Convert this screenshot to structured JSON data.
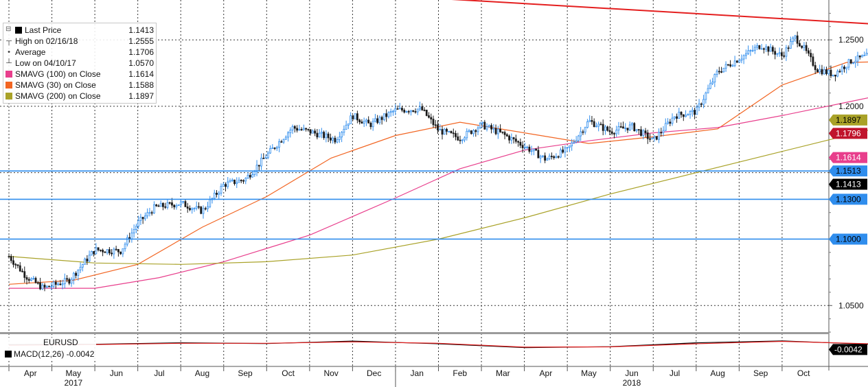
{
  "chart_data": [
    {
      "type": "candlestick",
      "title": "",
      "ylim": [
        1.03,
        1.28
      ],
      "y_ticks": [
        "1.0500",
        "1.1000",
        "1.1500",
        "1.2000",
        "1.2500"
      ],
      "x_month_labels": [
        "Apr",
        "May",
        "Jun",
        "Jul",
        "Aug",
        "Sep",
        "Oct",
        "Nov",
        "Dec",
        "Jan",
        "Feb",
        "Mar",
        "Apr",
        "May",
        "Jun",
        "Jul",
        "Aug",
        "Sep",
        "Oct"
      ],
      "x_year_labels": [
        {
          "label": "2017",
          "month": "May"
        },
        {
          "label": "2018",
          "month": "Jun"
        }
      ],
      "price_path": [
        {
          "t": 0.0,
          "v": 1.087
        },
        {
          "t": 0.4,
          "v": 1.072
        },
        {
          "t": 0.8,
          "v": 1.063
        },
        {
          "t": 1.4,
          "v": 1.069
        },
        {
          "t": 2.0,
          "v": 1.092
        },
        {
          "t": 2.6,
          "v": 1.091
        },
        {
          "t": 3.0,
          "v": 1.112
        },
        {
          "t": 3.4,
          "v": 1.124
        },
        {
          "t": 4.0,
          "v": 1.127
        },
        {
          "t": 4.5,
          "v": 1.121
        },
        {
          "t": 5.0,
          "v": 1.141
        },
        {
          "t": 5.5,
          "v": 1.145
        },
        {
          "t": 6.0,
          "v": 1.163
        },
        {
          "t": 6.6,
          "v": 1.184
        },
        {
          "t": 7.0,
          "v": 1.181
        },
        {
          "t": 7.6,
          "v": 1.175
        },
        {
          "t": 8.0,
          "v": 1.193
        },
        {
          "t": 8.4,
          "v": 1.186
        },
        {
          "t": 9.0,
          "v": 1.197
        },
        {
          "t": 9.6,
          "v": 1.198
        },
        {
          "t": 10.0,
          "v": 1.182
        },
        {
          "t": 10.5,
          "v": 1.176
        },
        {
          "t": 11.0,
          "v": 1.186
        },
        {
          "t": 11.5,
          "v": 1.179
        },
        {
          "t": 12.0,
          "v": 1.17
        },
        {
          "t": 12.5,
          "v": 1.16
        },
        {
          "t": 13.0,
          "v": 1.167
        },
        {
          "t": 13.5,
          "v": 1.189
        },
        {
          "t": 14.0,
          "v": 1.181
        },
        {
          "t": 14.5,
          "v": 1.185
        },
        {
          "t": 15.0,
          "v": 1.174
        },
        {
          "t": 15.5,
          "v": 1.193
        },
        {
          "t": 16.0,
          "v": 1.196
        },
        {
          "t": 16.5,
          "v": 1.226
        },
        {
          "t": 17.0,
          "v": 1.236
        },
        {
          "t": 17.5,
          "v": 1.246
        },
        {
          "t": 18.0,
          "v": 1.238
        },
        {
          "t": 18.3,
          "v": 1.252
        },
        {
          "t": 18.5,
          "v": 1.244
        },
        {
          "t": 18.8,
          "v": 1.228
        },
        {
          "t": 19.2,
          "v": 1.224
        },
        {
          "t": 19.6,
          "v": 1.234
        },
        {
          "t": 20.0,
          "v": 1.238
        },
        {
          "t": 20.3,
          "v": 1.239
        },
        {
          "t": 20.6,
          "v": 1.23
        },
        {
          "t": 21.0,
          "v": 1.232
        },
        {
          "t": 21.3,
          "v": 1.241
        },
        {
          "t": 21.6,
          "v": 1.229
        },
        {
          "t": 22.0,
          "v": 1.226
        },
        {
          "t": 22.3,
          "v": 1.232
        },
        {
          "t": 22.7,
          "v": 1.236
        },
        {
          "t": 23.0,
          "v": 1.222
        },
        {
          "t": 23.5,
          "v": 1.208
        },
        {
          "t": 24.0,
          "v": 1.195
        },
        {
          "t": 24.5,
          "v": 1.183
        },
        {
          "t": 25.0,
          "v": 1.17
        },
        {
          "t": 25.4,
          "v": 1.157
        },
        {
          "t": 25.7,
          "v": 1.17
        },
        {
          "t": 26.0,
          "v": 1.178
        },
        {
          "t": 26.4,
          "v": 1.166
        },
        {
          "t": 26.8,
          "v": 1.163
        },
        {
          "t": 27.2,
          "v": 1.172
        },
        {
          "t": 27.6,
          "v": 1.176
        },
        {
          "t": 28.0,
          "v": 1.167
        },
        {
          "t": 28.5,
          "v": 1.169
        },
        {
          "t": 29.0,
          "v": 1.172
        },
        {
          "t": 29.3,
          "v": 1.168
        },
        {
          "t": 29.7,
          "v": 1.172
        },
        {
          "t": 30.0,
          "v": 1.166
        },
        {
          "t": 30.3,
          "v": 1.158
        },
        {
          "t": 30.6,
          "v": 1.138
        },
        {
          "t": 30.8,
          "v": 1.135
        },
        {
          "t": 31.2,
          "v": 1.154
        },
        {
          "t": 31.6,
          "v": 1.167
        },
        {
          "t": 32.0,
          "v": 1.158
        },
        {
          "t": 32.4,
          "v": 1.162
        },
        {
          "t": 32.8,
          "v": 1.166
        },
        {
          "t": 33.2,
          "v": 1.174
        },
        {
          "t": 33.5,
          "v": 1.177
        },
        {
          "t": 33.8,
          "v": 1.161
        },
        {
          "t": 34.0,
          "v": 1.154
        },
        {
          "t": 34.4,
          "v": 1.155
        },
        {
          "t": 34.8,
          "v": 1.162
        },
        {
          "t": 35.2,
          "v": 1.155
        },
        {
          "t": 35.5,
          "v": 1.151
        },
        {
          "t": 35.9,
          "v": 1.1413
        }
      ],
      "moving_averages": [
        {
          "name": "SMAVG (30) on Close",
          "color": "#f26522",
          "points": [
            {
              "t": 0.0,
              "v": 1.066
            },
            {
              "t": 1.5,
              "v": 1.069
            },
            {
              "t": 3.0,
              "v": 1.081
            },
            {
              "t": 4.5,
              "v": 1.109
            },
            {
              "t": 6.0,
              "v": 1.132
            },
            {
              "t": 7.5,
              "v": 1.161
            },
            {
              "t": 9.0,
              "v": 1.178
            },
            {
              "t": 10.5,
              "v": 1.188
            },
            {
              "t": 12.0,
              "v": 1.18
            },
            {
              "t": 13.5,
              "v": 1.172
            },
            {
              "t": 15.0,
              "v": 1.177
            },
            {
              "t": 16.5,
              "v": 1.183
            },
            {
              "t": 18.0,
              "v": 1.216
            },
            {
              "t": 19.5,
              "v": 1.233
            },
            {
              "t": 21.0,
              "v": 1.234
            },
            {
              "t": 22.5,
              "v": 1.232
            },
            {
              "t": 24.0,
              "v": 1.224
            },
            {
              "t": 25.5,
              "v": 1.2
            },
            {
              "t": 27.0,
              "v": 1.175
            },
            {
              "t": 28.5,
              "v": 1.167
            },
            {
              "t": 30.0,
              "v": 1.168
            },
            {
              "t": 31.5,
              "v": 1.155
            },
            {
              "t": 33.0,
              "v": 1.157
            },
            {
              "t": 34.5,
              "v": 1.163
            },
            {
              "t": 35.9,
              "v": 1.1588
            }
          ]
        },
        {
          "name": "SMAVG (100) on Close",
          "color": "#e83e8c",
          "points": [
            {
              "t": 0.0,
              "v": 1.063
            },
            {
              "t": 2.0,
              "v": 1.063
            },
            {
              "t": 3.5,
              "v": 1.071
            },
            {
              "t": 5.0,
              "v": 1.083
            },
            {
              "t": 7.0,
              "v": 1.103
            },
            {
              "t": 9.0,
              "v": 1.131
            },
            {
              "t": 10.5,
              "v": 1.153
            },
            {
              "t": 12.0,
              "v": 1.167
            },
            {
              "t": 13.5,
              "v": 1.174
            },
            {
              "t": 15.0,
              "v": 1.18
            },
            {
              "t": 16.5,
              "v": 1.184
            },
            {
              "t": 18.0,
              "v": 1.193
            },
            {
              "t": 19.5,
              "v": 1.203
            },
            {
              "t": 21.0,
              "v": 1.213
            },
            {
              "t": 22.5,
              "v": 1.224
            },
            {
              "t": 24.0,
              "v": 1.23
            },
            {
              "t": 25.5,
              "v": 1.225
            },
            {
              "t": 27.0,
              "v": 1.213
            },
            {
              "t": 28.5,
              "v": 1.198
            },
            {
              "t": 30.0,
              "v": 1.183
            },
            {
              "t": 31.5,
              "v": 1.172
            },
            {
              "t": 33.0,
              "v": 1.166
            },
            {
              "t": 34.5,
              "v": 1.163
            },
            {
              "t": 35.9,
              "v": 1.1614
            }
          ]
        },
        {
          "name": "SMAVG (200) on Close",
          "color": "#a9a228",
          "points": [
            {
              "t": 0.0,
              "v": 1.087
            },
            {
              "t": 2.0,
              "v": 1.082
            },
            {
              "t": 4.0,
              "v": 1.081
            },
            {
              "t": 6.0,
              "v": 1.083
            },
            {
              "t": 8.0,
              "v": 1.088
            },
            {
              "t": 10.0,
              "v": 1.1
            },
            {
              "t": 12.0,
              "v": 1.116
            },
            {
              "t": 14.0,
              "v": 1.134
            },
            {
              "t": 16.0,
              "v": 1.15
            },
            {
              "t": 18.0,
              "v": 1.166
            },
            {
              "t": 20.0,
              "v": 1.182
            },
            {
              "t": 22.0,
              "v": 1.194
            },
            {
              "t": 24.0,
              "v": 1.201
            },
            {
              "t": 26.0,
              "v": 1.202
            },
            {
              "t": 28.0,
              "v": 1.2
            },
            {
              "t": 30.0,
              "v": 1.198
            },
            {
              "t": 32.0,
              "v": 1.197
            },
            {
              "t": 34.0,
              "v": 1.195
            },
            {
              "t": 35.9,
              "v": 1.1897
            }
          ]
        }
      ],
      "horizontal_lines": [
        {
          "value": 1.1513,
          "color": "#2f8ded",
          "label": "1.1513"
        },
        {
          "value": 1.13,
          "color": "#2f8ded",
          "label": "1.1300"
        },
        {
          "value": 1.1,
          "color": "#2f8ded",
          "label": "1.1000"
        }
      ],
      "resistance_segment": {
        "from_t": 26.3,
        "to_t": 38.6,
        "value": 1.1796,
        "color": "#c0142c",
        "label": "1.1796"
      },
      "trendline": {
        "color": "#e41e1e",
        "from": {
          "t": 0.0,
          "v": 1.3
        },
        "to": {
          "t": 38.6,
          "v": 1.227
        }
      },
      "value_tags": [
        {
          "value": 1.1897,
          "label": "1.1897",
          "bg": "#a9a228",
          "fg": "#000000"
        },
        {
          "value": 1.1796,
          "label": "1.1796",
          "bg": "#c0142c",
          "fg": "#ffffff"
        },
        {
          "value": 1.1614,
          "label": "1.1614",
          "bg": "#e83e8c",
          "fg": "#ffffff"
        },
        {
          "value": 1.1513,
          "label": "1.1513",
          "bg": "#2f8ded",
          "fg": "#000000"
        },
        {
          "value": 1.1413,
          "label": "1.1413",
          "bg": "#000000",
          "fg": "#ffffff"
        },
        {
          "value": 1.13,
          "label": "1.1300",
          "bg": "#2f8ded",
          "fg": "#000000"
        },
        {
          "value": 1.1,
          "label": "1.1000",
          "bg": "#2f8ded",
          "fg": "#000000"
        }
      ]
    },
    {
      "type": "line",
      "title": "EURUSD",
      "series": [
        {
          "name": "MACD(12,26)",
          "color": "#000000",
          "points": [
            {
              "t": 0,
              "v": 0.4
            },
            {
              "t": 2,
              "v": 0.45
            },
            {
              "t": 4,
              "v": 0.6
            },
            {
              "t": 6,
              "v": 0.52
            },
            {
              "t": 8,
              "v": 0.78
            },
            {
              "t": 10,
              "v": 0.5
            },
            {
              "t": 12,
              "v": 0.1
            },
            {
              "t": 14,
              "v": 0.2
            },
            {
              "t": 16,
              "v": 0.6
            },
            {
              "t": 18,
              "v": 0.8
            },
            {
              "t": 20,
              "v": 0.45
            },
            {
              "t": 22,
              "v": 0.2
            },
            {
              "t": 24,
              "v": -0.1
            },
            {
              "t": 26,
              "v": -0.5
            },
            {
              "t": 28,
              "v": -0.05
            },
            {
              "t": 30,
              "v": 0.1
            },
            {
              "t": 32,
              "v": -0.1
            },
            {
              "t": 34,
              "v": 0.25
            },
            {
              "t": 35.9,
              "v": -0.1
            }
          ]
        },
        {
          "name": "Signal",
          "color": "#e41e1e",
          "points": [
            {
              "t": 0,
              "v": 0.35
            },
            {
              "t": 2,
              "v": 0.42
            },
            {
              "t": 4,
              "v": 0.55
            },
            {
              "t": 6,
              "v": 0.55
            },
            {
              "t": 8,
              "v": 0.7
            },
            {
              "t": 10,
              "v": 0.55
            },
            {
              "t": 12,
              "v": 0.15
            },
            {
              "t": 14,
              "v": 0.18
            },
            {
              "t": 16,
              "v": 0.5
            },
            {
              "t": 18,
              "v": 0.75
            },
            {
              "t": 20,
              "v": 0.5
            },
            {
              "t": 22,
              "v": 0.25
            },
            {
              "t": 24,
              "v": -0.05
            },
            {
              "t": 26,
              "v": -0.45
            },
            {
              "t": 28,
              "v": -0.1
            },
            {
              "t": 30,
              "v": 0.05
            },
            {
              "t": 32,
              "v": -0.05
            },
            {
              "t": 34,
              "v": 0.2
            },
            {
              "t": 35.9,
              "v": -0.05
            }
          ]
        }
      ],
      "value_tag": {
        "label": "-0.0042",
        "bg": "#000000",
        "fg": "#ffffff"
      }
    }
  ],
  "legend": {
    "items": [
      {
        "glyph": "box",
        "color": "#000000",
        "label": "Last Price",
        "value": "1.1413"
      },
      {
        "glyph": "T",
        "color": "#444444",
        "label": "High on 02/16/18",
        "value": "1.2555"
      },
      {
        "glyph": "dot",
        "color": "#444444",
        "label": "Average",
        "value": "1.1706"
      },
      {
        "glyph": "L",
        "color": "#444444",
        "label": "Low on 04/10/17",
        "value": "1.0570"
      },
      {
        "glyph": "box",
        "color": "#e83e8c",
        "label": "SMAVG (100)  on Close",
        "value": "1.1614"
      },
      {
        "glyph": "box",
        "color": "#f26522",
        "label": "SMAVG (30)  on Close",
        "value": "1.1588"
      },
      {
        "glyph": "box",
        "color": "#a9a228",
        "label": "SMAVG (200)  on Close",
        "value": "1.1897"
      }
    ]
  },
  "macd_legend": {
    "title": "EURUSD",
    "macd_label": "MACD(12,26)",
    "macd_value": "-0.0042",
    "macd_color": "#000000",
    "signal_color": "#e41e1e"
  },
  "colors": {
    "up_candle": "#2f8ded",
    "down_candle": "#1a1a1a",
    "grid": "#333333",
    "panel_divider": "#9a9a9a"
  }
}
